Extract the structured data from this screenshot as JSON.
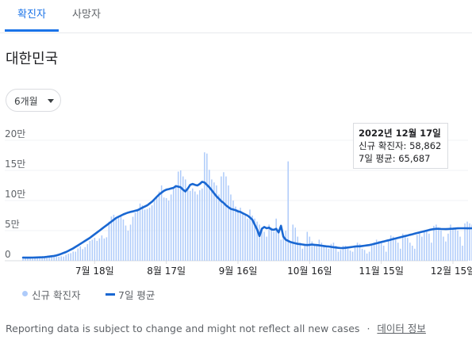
{
  "tabs": [
    {
      "label": "확진자",
      "active": true
    },
    {
      "label": "사망자",
      "active": false
    }
  ],
  "country": "대한민국",
  "range_selector": {
    "label": "6개월"
  },
  "chart_data": {
    "type": "bar",
    "y_ticks": [
      "0",
      "5만",
      "10만",
      "15만",
      "20만"
    ],
    "ylim": [
      0,
      200000
    ],
    "x_tick_labels": [
      "7월 18일",
      "8월 17일",
      "9월 16일",
      "10월 16일",
      "11월 15일",
      "12월 15일"
    ],
    "x_start": "2022-06-18",
    "x_end": "2022-12-17",
    "colors": {
      "bars": "#aecbfa",
      "average": "#1967d2"
    },
    "series": [
      {
        "name": "신규 확진자",
        "kind": "bars",
        "values": [
          7000,
          5500,
          5000,
          5800,
          6000,
          5900,
          5500,
          5300,
          4800,
          4600,
          4500,
          5900,
          6300,
          6700,
          6500,
          6700,
          7500,
          6900,
          10000,
          11800,
          12600,
          15200,
          15000,
          20500,
          24000,
          19300,
          22600,
          27600,
          33000,
          35000,
          38000,
          33000,
          37200,
          42000,
          37000,
          39000,
          65000,
          73400,
          76400,
          71300,
          71100,
          73500,
          68600,
          58500,
          50000,
          60000,
          73000,
          80000,
          86000,
          95000,
          92000,
          85000,
          86000,
          88000,
          92000,
          100000,
          105000,
          115000,
          125000,
          105000,
          104000,
          100000,
          110000,
          120000,
          125000,
          148000,
          150000,
          140000,
          135000,
          120000,
          116000,
          120000,
          115000,
          110000,
          117000,
          120000,
          180000,
          178000,
          151000,
          135000,
          130000,
          125000,
          110000,
          140000,
          147000,
          140000,
          125000,
          110000,
          100000,
          90000,
          85000,
          88000,
          80000,
          75000,
          70000,
          85000,
          75000,
          70000,
          65000,
          60000,
          55000,
          48000,
          40000,
          60000,
          55000,
          48000,
          70000,
          50000,
          35000,
          38000,
          50000,
          165000,
          29000,
          60000,
          55000,
          40000,
          30000,
          20000,
          27000,
          48000,
          40000,
          32000,
          28000,
          27000,
          35000,
          30000,
          25000,
          22000,
          20000,
          28000,
          30000,
          25000,
          15000,
          18000,
          25000,
          25000,
          20000,
          17000,
          15000,
          25000,
          30000,
          28000,
          20000,
          18000,
          12000,
          15000,
          25000,
          30000,
          35000,
          33000,
          30000,
          25000,
          15000,
          35000,
          42000,
          40000,
          35000,
          30000,
          20000,
          45000,
          40000,
          38000,
          30000,
          25000,
          20000,
          43000,
          45000,
          40000,
          48000,
          50000,
          45000,
          30000,
          58000,
          60000,
          55000,
          50000,
          40000,
          32000,
          45000,
          60000,
          55000,
          52000,
          50000,
          40000,
          25000,
          62000,
          65000,
          62000,
          60000,
          55000,
          30000,
          45000,
          88000,
          85000,
          78000,
          70000,
          65000,
          50000,
          58862
        ]
      },
      {
        "name": "7일 평균",
        "kind": "line",
        "values": [
          5200,
          5100,
          5100,
          5100,
          5200,
          5400,
          5500,
          5600,
          5800,
          6000,
          6500,
          7000,
          7500,
          8000,
          8800,
          10000,
          11500,
          13000,
          14500,
          16500,
          18500,
          20500,
          23000,
          25500,
          28000,
          30500,
          33000,
          35500,
          38000,
          41000,
          44000,
          47000,
          50000,
          53000,
          56000,
          59000,
          62000,
          65000,
          68000,
          71000,
          73000,
          75000,
          77000,
          78500,
          80000,
          81000,
          82000,
          83000,
          84000,
          86000,
          88000,
          90000,
          92000,
          95000,
          98000,
          102000,
          106000,
          110000,
          113000,
          116000,
          118000,
          119000,
          120000,
          121000,
          124000,
          123000,
          122000,
          118000,
          115000,
          120000,
          126000,
          127500,
          126000,
          125000,
          127500,
          131000,
          130000,
          126000,
          122000,
          117000,
          112000,
          107000,
          103000,
          99000,
          96000,
          92000,
          89000,
          86000,
          85000,
          84000,
          82000,
          81000,
          79000,
          77000,
          75000,
          72000,
          68000,
          60000,
          52000,
          41000,
          53000,
          56000,
          54000,
          55000,
          52000,
          51500,
          53000,
          47000,
          58000,
          40000,
          35000,
          33000,
          31000,
          30000,
          29000,
          28000,
          27500,
          27000,
          26500,
          26000,
          26500,
          27000,
          26500,
          26000,
          25500,
          25000,
          24500,
          24000,
          23500,
          23000,
          22500,
          22000,
          21500,
          21000,
          21000,
          21500,
          22000,
          22500,
          23000,
          23500,
          24000,
          24000,
          24500,
          25000,
          25500,
          26000,
          27000,
          28000,
          29000,
          30000,
          31000,
          32000,
          33000,
          34000,
          35000,
          36000,
          37000,
          38000,
          39000,
          40000,
          41000,
          42000,
          43000,
          44000,
          45000,
          46000,
          47000,
          48000,
          49000,
          50000,
          51000,
          52000,
          52500,
          53000,
          53000,
          52800,
          52600,
          52500,
          52800,
          53000,
          53200,
          53500,
          53800,
          54000,
          54000,
          53900,
          53800,
          53800,
          53900,
          54000,
          54000,
          54200,
          54500,
          55000,
          56000,
          57000,
          58500,
          60000,
          61500,
          62500,
          63500,
          64500,
          65687
        ]
      }
    ],
    "tooltip": {
      "date": "2022년 12월 17일",
      "cases_line": "신규 확진자: 58,862",
      "avg_line": "7일 평균: 65,687"
    }
  },
  "legend": {
    "cases": "신규 확진자",
    "average": "7일 평균"
  },
  "footer": {
    "note": "Reporting data is subject to change and might not reflect all new cases",
    "separator": "·",
    "link": "데이터 정보"
  }
}
